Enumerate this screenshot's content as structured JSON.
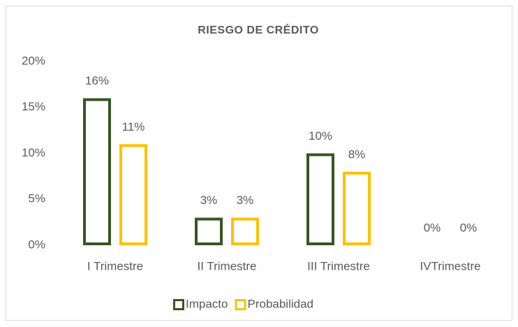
{
  "chart_data": {
    "type": "bar",
    "title": "RIESGO DE CRÉDITO",
    "categories": [
      "I Trimestre",
      "II Trimestre",
      "III Trimestre",
      "IVTrimestre"
    ],
    "series": [
      {
        "name": "Impacto",
        "color": "#375623",
        "values": [
          16,
          3,
          10,
          0
        ],
        "value_labels": [
          "16%",
          "3%",
          "10%",
          "0%"
        ]
      },
      {
        "name": "Probabilidad",
        "color": "#ffc000",
        "values": [
          11,
          3,
          8,
          0
        ],
        "value_labels": [
          "11%",
          "3%",
          "8%",
          "0%"
        ]
      }
    ],
    "ylim": [
      0,
      20
    ],
    "yticks": [
      {
        "value": 0,
        "label": "0%"
      },
      {
        "value": 5,
        "label": "5%"
      },
      {
        "value": 10,
        "label": "10%"
      },
      {
        "value": 15,
        "label": "15%"
      },
      {
        "value": 20,
        "label": "20%"
      }
    ],
    "grid": false,
    "legend": "bottom"
  }
}
